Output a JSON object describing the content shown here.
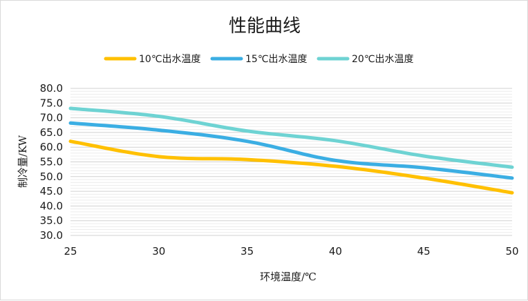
{
  "chart_data": {
    "type": "line",
    "title": "性能曲线",
    "xlabel": "环境温度/℃",
    "ylabel": "制冷量/KW",
    "x": [
      25,
      30,
      35,
      40,
      45,
      50
    ],
    "xlim": [
      25,
      50
    ],
    "ylim": [
      30,
      80
    ],
    "x_ticks": [
      "25",
      "30",
      "35",
      "40",
      "45",
      "50"
    ],
    "y_ticks": [
      "30.0",
      "35.0",
      "40.0",
      "45.0",
      "50.0",
      "55.0",
      "60.0",
      "65.0",
      "70.0",
      "75.0",
      "80.0"
    ],
    "grid": true,
    "legend_position": "top",
    "smooth": true,
    "series": [
      {
        "name": "10℃出水温度",
        "color": "#FFC000",
        "values": [
          62.0,
          56.8,
          55.8,
          53.5,
          49.5,
          44.5
        ]
      },
      {
        "name": "15℃出水温度",
        "color": "#3BAEE3",
        "values": [
          68.2,
          65.8,
          62.0,
          55.5,
          53.0,
          49.5
        ]
      },
      {
        "name": "20℃出水温度",
        "color": "#6ED3D3",
        "values": [
          73.2,
          70.5,
          65.5,
          62.2,
          57.0,
          53.2
        ]
      }
    ]
  }
}
